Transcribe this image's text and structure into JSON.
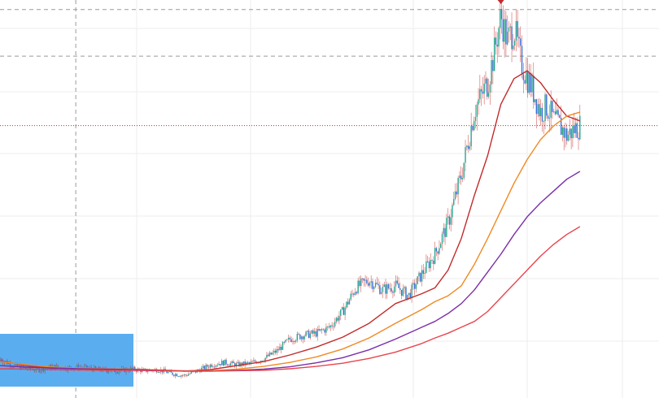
{
  "chart_data": {
    "type": "line",
    "title": "",
    "xlabel": "",
    "ylabel": "",
    "xlim": [
      0,
      100
    ],
    "ylim": [
      0,
      100
    ],
    "grid": true,
    "legend": "none",
    "price_marker_y": 68.6,
    "high_marker_y": 98.6,
    "reference_lines_y": [
      98.0,
      86.2
    ],
    "crosshair_x": 11.5,
    "series": [
      {
        "kind": "candles",
        "color_up": "#2ca58d",
        "color_down": "#3a6fd8",
        "color_wick": "#c22b2b",
        "x": [
          0,
          2,
          4,
          6,
          8,
          10,
          12,
          14,
          16,
          18,
          20,
          22,
          24,
          26,
          28,
          30,
          32,
          34,
          36,
          38,
          40,
          42,
          44,
          46,
          48,
          50,
          52,
          54,
          56,
          58,
          60,
          62,
          64,
          66,
          68,
          70,
          72,
          74,
          75,
          76,
          77,
          78,
          79,
          80,
          81,
          82,
          83,
          84,
          85,
          86,
          87,
          88
        ],
        "y": [
          9.5,
          7.8,
          7.0,
          6.8,
          7.5,
          7.2,
          7.4,
          7.0,
          6.6,
          6.5,
          6.9,
          6.5,
          6.8,
          5.8,
          5.3,
          6.5,
          8.0,
          8.6,
          8.0,
          8.4,
          9.5,
          11.5,
          14.5,
          15.5,
          16.0,
          17.5,
          21.5,
          27.5,
          29.5,
          27.0,
          28.0,
          25.5,
          31.0,
          36.0,
          44.0,
          56.0,
          72.5,
          79.5,
          87.0,
          96.5,
          90.0,
          93.5,
          85.0,
          81.0,
          77.0,
          72.0,
          73.5,
          70.0,
          68.5,
          66.0,
          67.5,
          68.6
        ]
      },
      {
        "name": "",
        "color": "#c22b2b",
        "x": [
          0,
          4,
          8,
          12,
          16,
          20,
          24,
          28,
          32,
          36,
          40,
          44,
          48,
          52,
          56,
          60,
          64,
          66,
          68,
          70,
          72,
          74,
          76,
          78,
          80,
          82,
          84,
          86,
          88
        ],
        "y": [
          9.0,
          7.8,
          7.1,
          7.2,
          6.8,
          6.9,
          6.6,
          6.4,
          6.8,
          7.8,
          8.8,
          10.5,
          12.5,
          15.0,
          18.5,
          23.5,
          26.0,
          27.5,
          32.0,
          40.0,
          51.0,
          61.0,
          74.0,
          80.5,
          82.5,
          79.5,
          75.0,
          71.0,
          69.8
        ]
      },
      {
        "name": "",
        "color": "#f08a24",
        "x": [
          0,
          4,
          8,
          12,
          16,
          20,
          24,
          28,
          32,
          36,
          40,
          44,
          48,
          52,
          56,
          60,
          64,
          66,
          68,
          70,
          72,
          74,
          76,
          78,
          80,
          82,
          84,
          86,
          88
        ],
        "y": [
          8.8,
          8.0,
          7.4,
          7.2,
          7.0,
          6.9,
          6.7,
          6.5,
          6.5,
          6.9,
          7.6,
          8.6,
          10.0,
          12.0,
          14.8,
          18.5,
          22.0,
          24.0,
          25.5,
          28.0,
          33.5,
          40.0,
          47.0,
          54.0,
          60.0,
          65.0,
          68.5,
          71.0,
          72.0
        ]
      },
      {
        "name": "",
        "color": "#7b2fa8",
        "x": [
          0,
          4,
          8,
          12,
          16,
          20,
          24,
          28,
          32,
          36,
          40,
          44,
          48,
          52,
          56,
          60,
          64,
          66,
          68,
          70,
          72,
          74,
          76,
          78,
          80,
          82,
          84,
          86,
          88
        ],
        "y": [
          7.8,
          7.4,
          7.2,
          7.0,
          6.9,
          6.8,
          6.6,
          6.4,
          6.4,
          6.6,
          6.9,
          7.5,
          8.5,
          9.8,
          11.8,
          14.5,
          17.5,
          19.0,
          21.0,
          23.5,
          27.0,
          31.5,
          36.0,
          41.0,
          45.5,
          49.0,
          52.0,
          55.0,
          57.0
        ]
      },
      {
        "name": "",
        "color": "#e8454e",
        "x": [
          0,
          4,
          8,
          12,
          16,
          20,
          24,
          28,
          32,
          36,
          40,
          44,
          48,
          52,
          56,
          60,
          64,
          66,
          68,
          70,
          72,
          74,
          76,
          78,
          80,
          82,
          84,
          86,
          88
        ],
        "y": [
          7.0,
          6.9,
          6.8,
          6.7,
          6.6,
          6.6,
          6.5,
          6.4,
          6.4,
          6.5,
          6.6,
          7.0,
          7.6,
          8.4,
          9.6,
          11.2,
          13.4,
          14.8,
          16.0,
          17.5,
          19.0,
          21.5,
          25.0,
          28.5,
          32.0,
          35.5,
          38.5,
          41.0,
          43.0
        ]
      }
    ]
  },
  "selection_box": {
    "color": "#5aaef0"
  },
  "colors": {
    "grid": "#eeeeee",
    "dashed_lines": "#9a9a9a",
    "price_line": "#c22b2b"
  }
}
